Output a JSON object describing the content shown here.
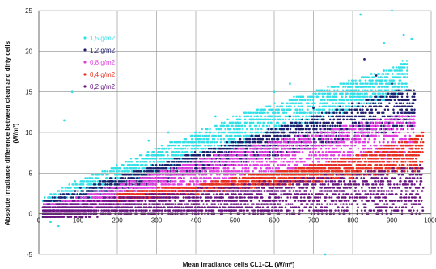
{
  "chart_data": {
    "type": "scatter",
    "title": "",
    "xlabel": "Mean irradiance cells CL1-CL  (W/m²)",
    "ylabel_line1": "Absolute irradiance difference between clean and dirty cells",
    "ylabel_line2": "(W/m²)",
    "xlim": [
      0,
      1000
    ],
    "ylim": [
      -5,
      25
    ],
    "x_ticks": [
      "0",
      "100",
      "200",
      "300",
      "400",
      "500",
      "600",
      "700",
      "800",
      "900",
      "1000"
    ],
    "y_ticks": [
      "-5",
      "0",
      "5",
      "10",
      "15",
      "20",
      "25"
    ],
    "grid": true,
    "legend_position": "top-left",
    "series": [
      {
        "name": "1,5 g/m2",
        "color": "#33e0e8",
        "band_x": [
          10,
          100,
          200,
          300,
          400,
          500,
          600,
          700,
          800,
          900,
          940
        ],
        "band_low": [
          -0.5,
          1,
          3,
          5,
          7,
          8,
          10,
          11,
          13,
          14,
          15
        ],
        "band_high": [
          2,
          4,
          6,
          8,
          10,
          12,
          13.5,
          15,
          16.5,
          18,
          19
        ],
        "outliers": [
          [
            65,
            11.5
          ],
          [
            85,
            15
          ],
          [
            280,
            9
          ],
          [
            330,
            10
          ],
          [
            450,
            12
          ],
          [
            600,
            15
          ],
          [
            640,
            16
          ],
          [
            820,
            24.5
          ],
          [
            880,
            21
          ],
          [
            900,
            25
          ],
          [
            930,
            22
          ],
          [
            950,
            21.5
          ],
          [
            730,
            -5
          ],
          [
            50,
            -1.5
          ],
          [
            30,
            -1
          ]
        ]
      },
      {
        "name": "1,2 g/m2",
        "color": "#1f1f6e",
        "band_x": [
          10,
          100,
          200,
          300,
          400,
          500,
          600,
          700,
          800,
          900,
          960
        ],
        "band_low": [
          -0.5,
          0.5,
          2,
          3.5,
          5,
          6,
          7,
          8,
          9,
          10,
          11
        ],
        "band_high": [
          1.5,
          3,
          4.5,
          6,
          7.5,
          9,
          10.5,
          12,
          13.5,
          15,
          15.5
        ],
        "outliers": [
          [
            640,
            12
          ],
          [
            700,
            13
          ],
          [
            830,
            19
          ],
          [
            860,
            17
          ],
          [
            900,
            16
          ]
        ]
      },
      {
        "name": "0,8 g/m2",
        "color": "#e040e0",
        "band_x": [
          10,
          100,
          200,
          300,
          400,
          500,
          600,
          700,
          800,
          900,
          960
        ],
        "band_low": [
          -0.5,
          0,
          1,
          2,
          3,
          4,
          5,
          5.5,
          6,
          6.5,
          7
        ],
        "band_high": [
          1,
          2,
          3.5,
          5,
          6.5,
          8,
          9,
          10,
          11,
          12,
          12.5
        ],
        "outliers": []
      },
      {
        "name": "0,4 g/m2",
        "color": "#e83020",
        "band_x": [
          200,
          300,
          400,
          500,
          600,
          700,
          800,
          900,
          980
        ],
        "band_low": [
          1.5,
          2,
          2.5,
          3,
          3.5,
          4,
          4.5,
          5,
          5.5
        ],
        "band_high": [
          2.5,
          3,
          3.5,
          4.5,
          5,
          6,
          7,
          8.5,
          10
        ],
        "outliers": []
      },
      {
        "name": "0,2 g/m2",
        "color": "#6a1580",
        "band_x": [
          10,
          100,
          200,
          300,
          400,
          500,
          600,
          700,
          800,
          900,
          980
        ],
        "band_low": [
          -0.5,
          -0.5,
          0,
          0,
          0,
          0,
          0,
          0,
          0,
          0,
          0
        ],
        "band_high": [
          1,
          1.5,
          2,
          2.5,
          3,
          3.5,
          4,
          4.5,
          5,
          5.5,
          6
        ],
        "outliers": []
      }
    ]
  }
}
